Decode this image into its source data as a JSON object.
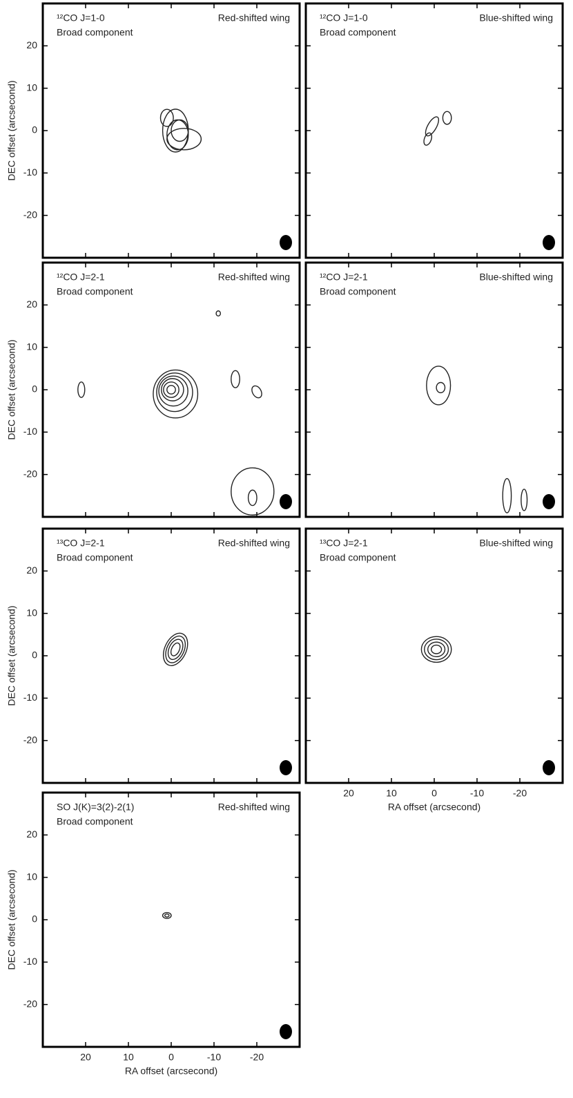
{
  "chart_data": [
    {
      "type": "contour",
      "line": "¹²CO J=1-0",
      "component": "Broad component",
      "wing": "Red-shifted wing",
      "ylabel": "DEC offset (arcsecond)",
      "xlim": [
        30,
        -30
      ],
      "ylim": [
        -30,
        30
      ],
      "xticks": [
        20,
        10,
        0,
        -10,
        -20
      ],
      "yticks": [
        20,
        10,
        0,
        -10,
        -20
      ]
    },
    {
      "type": "contour",
      "line": "¹²CO J=1-0",
      "component": "Broad component",
      "wing": "Blue-shifted wing",
      "xlim": [
        30,
        -30
      ],
      "ylim": [
        -30,
        30
      ],
      "xticks": [
        20,
        10,
        0,
        -10,
        -20
      ],
      "yticks": [
        20,
        10,
        0,
        -10,
        -20
      ]
    },
    {
      "type": "contour",
      "line": "¹²CO J=2-1",
      "component": "Broad component",
      "wing": "Red-shifted wing",
      "ylabel": "DEC offset (arcsecond)",
      "xlim": [
        30,
        -30
      ],
      "ylim": [
        -30,
        30
      ],
      "xticks": [
        20,
        10,
        0,
        -10,
        -20
      ],
      "yticks": [
        20,
        10,
        0,
        -10,
        -20
      ]
    },
    {
      "type": "contour",
      "line": "¹²CO J=2-1",
      "component": "Broad component",
      "wing": "Blue-shifted wing",
      "xlim": [
        30,
        -30
      ],
      "ylim": [
        -30,
        30
      ],
      "xticks": [
        20,
        10,
        0,
        -10,
        -20
      ],
      "yticks": [
        20,
        10,
        0,
        -10,
        -20
      ]
    },
    {
      "type": "contour",
      "line": "¹³CO J=2-1",
      "component": "Broad component",
      "wing": "Red-shifted wing",
      "ylabel": "DEC offset (arcsecond)",
      "xlim": [
        30,
        -30
      ],
      "ylim": [
        -30,
        30
      ],
      "xticks": [
        20,
        10,
        0,
        -10,
        -20
      ],
      "yticks": [
        20,
        10,
        0,
        -10,
        -20
      ]
    },
    {
      "type": "contour",
      "line": "¹³CO J=2-1",
      "component": "Broad component",
      "wing": "Blue-shifted wing",
      "xlabel": "RA offset (arcsecond)",
      "xlim": [
        30,
        -30
      ],
      "ylim": [
        -30,
        30
      ],
      "xticks": [
        20,
        10,
        0,
        -10,
        -20
      ],
      "yticks": [
        20,
        10,
        0,
        -10,
        -20
      ]
    },
    {
      "type": "contour",
      "line": "SO J(K)=3(2)-2(1)",
      "component": "Broad component",
      "wing": "Red-shifted wing",
      "ylabel": "DEC offset (arcsecond)",
      "xlabel": "RA offset (arcsecond)",
      "xlim": [
        30,
        -30
      ],
      "ylim": [
        -30,
        30
      ],
      "xticks": [
        20,
        10,
        0,
        -10,
        -20
      ],
      "yticks": [
        20,
        10,
        0,
        -10,
        -20
      ]
    }
  ]
}
